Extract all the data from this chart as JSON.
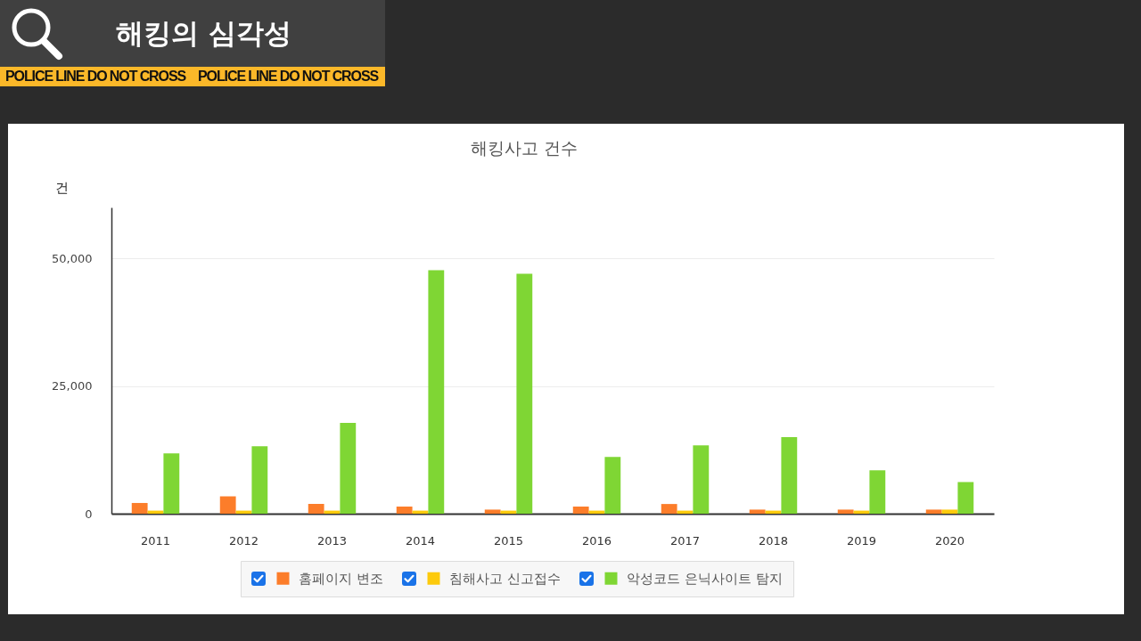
{
  "chart_data": {
    "type": "bar",
    "title": "해킹의 심각성",
    "subtitle": "해킹사고 건수",
    "ylabel": "건",
    "categories": [
      "2011",
      "2012",
      "2013",
      "2014",
      "2015",
      "2016",
      "2017",
      "2018",
      "2019",
      "2020"
    ],
    "series": [
      {
        "name": "홈페이지 변조",
        "color": "#fc7d2a",
        "values": [
          2100,
          3400,
          1900,
          1400,
          800,
          1400,
          1900,
          800,
          800,
          800
        ]
      },
      {
        "name": "침해사고 신고접수",
        "color": "#fdca0c",
        "values": [
          600,
          600,
          600,
          600,
          600,
          600,
          600,
          600,
          600,
          800
        ]
      },
      {
        "name": "악성코드 은닉사이트 탐지",
        "color": "#7fd634",
        "values": [
          11800,
          13200,
          17800,
          47700,
          47000,
          11100,
          13400,
          15000,
          8500,
          6200
        ]
      }
    ],
    "ylim": [
      0,
      60000
    ],
    "yticks": [
      0,
      {
        "value": 25000,
        "label": "25,000"
      },
      {
        "value": 50000,
        "label": "50,000"
      }
    ],
    "grid": "y",
    "legend": "bottom",
    "annotations": [
      "POLICE LINE DO NOT CROSS",
      "POLICE LINE DO NOT CROSS"
    ]
  }
}
